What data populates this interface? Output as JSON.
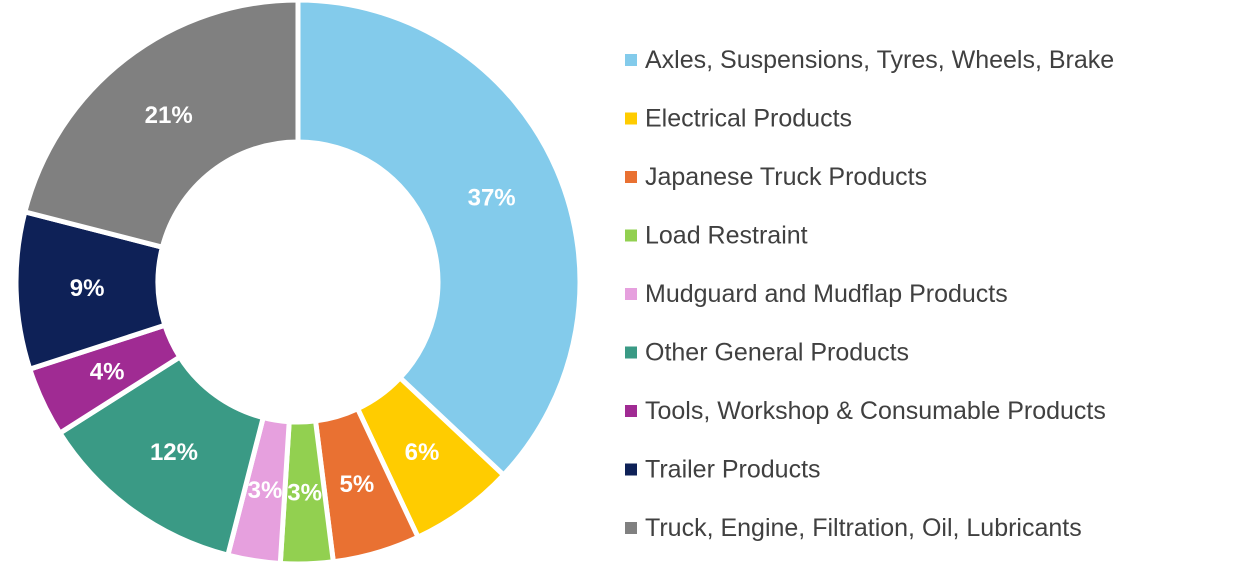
{
  "chart_data": {
    "type": "donut",
    "categories": [
      "Axles, Suspensions, Tyres, Wheels, Brake",
      "Electrical Products",
      "Japanese Truck Products",
      "Load Restraint",
      "Mudguard and Mudflap Products",
      "Other General Products",
      "Tools, Workshop & Consumable Products",
      "Trailer Products",
      "Truck, Engine, Filtration, Oil, Lubricants"
    ],
    "values": [
      37,
      6,
      5,
      3,
      3,
      12,
      4,
      9,
      21
    ],
    "value_labels": [
      "37%",
      "6%",
      "5%",
      "3%",
      "3%",
      "12%",
      "4%",
      "9%",
      "21%"
    ],
    "colors": [
      "#83CBEB",
      "#FFCC00",
      "#E97132",
      "#92D050",
      "#E6A0DE",
      "#3A9A85",
      "#A02B93",
      "#0E2157",
      "#808080"
    ],
    "legend": "right"
  }
}
